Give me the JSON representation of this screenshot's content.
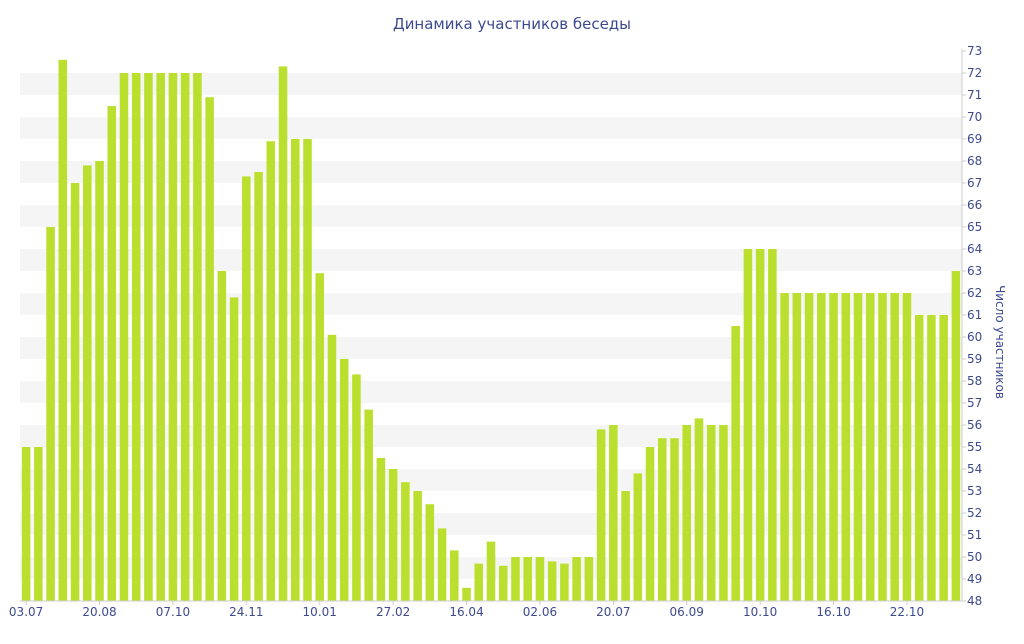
{
  "chart_data": {
    "type": "bar",
    "title": "Динамика участников беседы",
    "ylabel": "Число участников",
    "xlabel": "",
    "ylim": [
      48,
      73
    ],
    "yticks": [
      48,
      49,
      50,
      51,
      52,
      53,
      54,
      55,
      56,
      57,
      58,
      59,
      60,
      61,
      62,
      63,
      64,
      65,
      66,
      67,
      68,
      69,
      70,
      71,
      72,
      73
    ],
    "y_axis_side": "right",
    "grid": "alternating horizontal bands",
    "bar_color": "#bbdf2f",
    "text_color": "#3d4a8f",
    "band_color": "#f5f5f5",
    "xtick_labels": [
      {
        "label": "03.07",
        "index": 0
      },
      {
        "label": "20.08",
        "index": 6
      },
      {
        "label": "07.10",
        "index": 12
      },
      {
        "label": "24.11",
        "index": 18
      },
      {
        "label": "10.01",
        "index": 24
      },
      {
        "label": "27.02",
        "index": 30
      },
      {
        "label": "16.04",
        "index": 36
      },
      {
        "label": "02.06",
        "index": 42
      },
      {
        "label": "20.07",
        "index": 48
      },
      {
        "label": "06.09",
        "index": 54
      },
      {
        "label": "10.10",
        "index": 60
      },
      {
        "label": "16.10",
        "index": 66
      },
      {
        "label": "22.10",
        "index": 72
      }
    ],
    "values": [
      55,
      55,
      65,
      72.6,
      67,
      67.8,
      68,
      70.5,
      72,
      72,
      72,
      72,
      72,
      72,
      72,
      70.9,
      63,
      61.8,
      67.3,
      67.5,
      68.9,
      72.3,
      69,
      69,
      62.9,
      60.1,
      59,
      58.3,
      56.7,
      54.5,
      54,
      53.4,
      53,
      52.4,
      51.3,
      50.3,
      48.6,
      49.7,
      50.7,
      49.6,
      50,
      50,
      50,
      49.8,
      49.7,
      50,
      50,
      55.8,
      56,
      53,
      53.8,
      55,
      55.4,
      55.4,
      56,
      56.3,
      56,
      56,
      60.5,
      64,
      64,
      64,
      62,
      62,
      62,
      62,
      62,
      62,
      62,
      62,
      62,
      62,
      62,
      61,
      61,
      61,
      63
    ]
  }
}
